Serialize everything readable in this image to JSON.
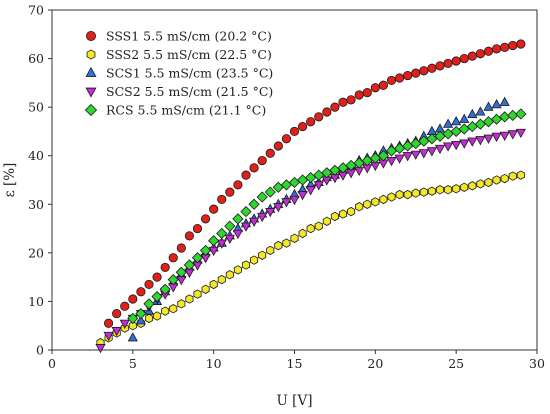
{
  "chart_data": {
    "type": "scatter",
    "xlabel": "U [V]",
    "ylabel": "ε [%]",
    "xlim": [
      0,
      30
    ],
    "ylim": [
      0,
      70
    ],
    "xticks": [
      0,
      5,
      10,
      15,
      20,
      25,
      30
    ],
    "yticks": [
      0,
      10,
      20,
      30,
      40,
      50,
      60,
      70
    ],
    "grid": false,
    "legend_position": "top-left",
    "series": [
      {
        "name": "SSS1 5.5 mS/cm (20.2 °C)",
        "marker": "circle",
        "color": "#e0201a",
        "x": [
          3.5,
          4,
          4.5,
          5,
          5.5,
          6,
          6.5,
          7,
          7.5,
          8,
          8.5,
          9,
          9.5,
          10,
          10.5,
          11,
          11.5,
          12,
          12.5,
          13,
          13.5,
          14,
          14.5,
          15,
          15.5,
          16,
          16.5,
          17,
          17.5,
          18,
          18.5,
          19,
          19.5,
          20,
          20.5,
          21,
          21.5,
          22,
          22.5,
          23,
          23.5,
          24,
          24.5,
          25,
          25.5,
          26,
          26.5,
          27,
          27.5,
          28,
          28.5,
          29
        ],
        "y": [
          5.5,
          7.5,
          9,
          10.5,
          12,
          13.5,
          15,
          17,
          19,
          21,
          23.5,
          25,
          27,
          29,
          31,
          32.5,
          34,
          36,
          37.5,
          39,
          40.5,
          42,
          43.5,
          45,
          46,
          47,
          48,
          49,
          50,
          51,
          51.5,
          52.5,
          53,
          54,
          54.5,
          55.5,
          56,
          56.5,
          57,
          57.5,
          58,
          58.5,
          59,
          59.5,
          60,
          60.5,
          61,
          61.5,
          62,
          62.3,
          62.7,
          63
        ]
      },
      {
        "name": "SSS2 5.5 mS/cm (22.5 °C)",
        "marker": "hexagon",
        "color": "#f5e627",
        "x": [
          3,
          3.5,
          4,
          4.5,
          5,
          5.5,
          6,
          6.5,
          7,
          7.5,
          8,
          8.5,
          9,
          9.5,
          10,
          10.5,
          11,
          11.5,
          12,
          12.5,
          13,
          13.5,
          14,
          14.5,
          15,
          15.5,
          16,
          16.5,
          17,
          17.5,
          18,
          18.5,
          19,
          19.5,
          20,
          20.5,
          21,
          21.5,
          22,
          22.5,
          23,
          23.5,
          24,
          24.5,
          25,
          25.5,
          26,
          26.5,
          27,
          27.5,
          28,
          28.5,
          29
        ],
        "y": [
          1.5,
          2.5,
          3.5,
          4.5,
          5,
          5.5,
          6.5,
          7,
          8,
          8.5,
          9.5,
          10.5,
          11.5,
          12.5,
          13.5,
          14.5,
          15.5,
          16.5,
          17.5,
          18.5,
          19.5,
          20.5,
          21.5,
          22,
          23,
          24,
          25,
          25.5,
          26.5,
          27.5,
          28,
          28.5,
          29.5,
          30,
          30.5,
          31,
          31.5,
          32,
          32,
          32.3,
          32.5,
          32.7,
          33,
          33,
          33.2,
          33.5,
          33.8,
          34.2,
          34.5,
          35,
          35.3,
          35.8,
          36
        ]
      },
      {
        "name": "SCS1 5.5 mS/cm (23.5 °C)",
        "marker": "triangle",
        "color": "#2f6fd6",
        "x": [
          5,
          5.5,
          6,
          6.5,
          7,
          7.5,
          8,
          8.5,
          9,
          9.5,
          10,
          10.5,
          11,
          11.5,
          12,
          12.5,
          13,
          13.5,
          14,
          14.5,
          15,
          15.5,
          16,
          16.5,
          17,
          17.5,
          18,
          18.5,
          19,
          19.5,
          20,
          20.5,
          21,
          21.5,
          22,
          22.5,
          23,
          23.5,
          24,
          24.5,
          25,
          25.5,
          26,
          26.5,
          27,
          27.5,
          28
        ],
        "y": [
          2.5,
          6,
          8,
          10,
          12,
          14,
          15.5,
          17,
          18.5,
          20,
          21,
          22,
          23.5,
          25,
          26,
          27,
          28,
          29,
          30,
          31,
          32,
          33,
          34,
          34.5,
          35.5,
          36,
          37,
          38,
          39,
          39.5,
          40,
          41,
          41.5,
          42,
          42.5,
          43,
          44,
          45,
          45.5,
          46.5,
          47,
          47.5,
          48.5,
          49,
          50,
          50.5,
          51
        ]
      },
      {
        "name": "SCS2 5.5 mS/cm (21.5 °C)",
        "marker": "triangle-down",
        "color": "#c52bd6",
        "x": [
          3,
          3.5,
          4,
          4.5,
          5,
          5.5,
          6,
          6.5,
          7,
          7.5,
          8,
          8.5,
          9,
          9.5,
          10,
          10.5,
          11,
          11.5,
          12,
          12.5,
          13,
          13.5,
          14,
          14.5,
          15,
          15.5,
          16,
          16.5,
          17,
          17.5,
          18,
          18.5,
          19,
          19.5,
          20,
          20.5,
          21,
          21.5,
          22,
          22.5,
          23,
          23.5,
          24,
          24.5,
          25,
          25.5,
          26,
          26.5,
          27,
          27.5,
          28,
          28.5,
          29
        ],
        "y": [
          0.5,
          3,
          4,
          5.5,
          6.5,
          7.5,
          9,
          10.5,
          11.5,
          13,
          14.5,
          16,
          17.5,
          19,
          20.5,
          22,
          23,
          24,
          25.5,
          26.5,
          27.5,
          28.5,
          29.5,
          30.5,
          31,
          32,
          33,
          34,
          35,
          35.5,
          36,
          36.5,
          37,
          37.5,
          38,
          38.5,
          39,
          39.5,
          40,
          40.3,
          40.6,
          41,
          41.5,
          42,
          42.3,
          42.6,
          43,
          43.3,
          43.6,
          44,
          44.2,
          44.5,
          44.8
        ]
      },
      {
        "name": "RCS 5.5 mS/cm (21.1 °C)",
        "marker": "diamond",
        "color": "#2fd62f",
        "x": [
          5,
          5.5,
          6,
          6.5,
          7,
          7.5,
          8,
          8.5,
          9,
          9.5,
          10,
          10.5,
          11,
          11.5,
          12,
          12.5,
          13,
          13.5,
          14,
          14.5,
          15,
          15.5,
          16,
          16.5,
          17,
          17.5,
          18,
          18.5,
          19,
          19.5,
          20,
          20.5,
          21,
          21.5,
          22,
          22.5,
          23,
          23.5,
          24,
          24.5,
          25,
          25.5,
          26,
          26.5,
          27,
          27.5,
          28,
          28.5,
          29
        ],
        "y": [
          6.5,
          7.5,
          9.5,
          11,
          12.5,
          14.5,
          16,
          17.5,
          19,
          20.5,
          22.5,
          24,
          25.5,
          27,
          28.5,
          30,
          31.5,
          32.5,
          33.5,
          34,
          34.5,
          35,
          35.5,
          36,
          36.5,
          37,
          37.5,
          38,
          38.5,
          39,
          39.5,
          40,
          41,
          41.5,
          42,
          42.5,
          43,
          43.5,
          44,
          44.5,
          45,
          45.5,
          46,
          46.5,
          47,
          47.5,
          48,
          48.3,
          48.6
        ]
      }
    ]
  }
}
